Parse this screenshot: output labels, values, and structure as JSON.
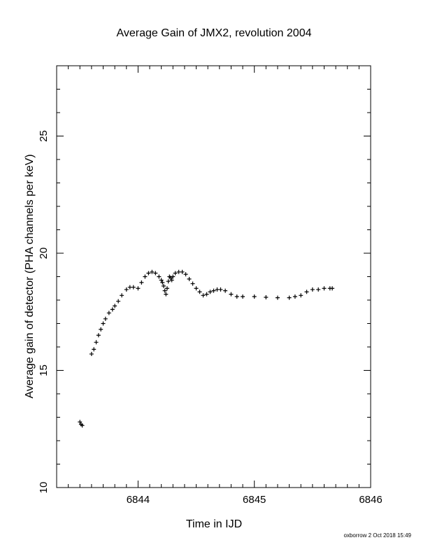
{
  "chart_data": {
    "type": "scatter",
    "title": "Average Gain of JMX2, revolution 2004",
    "xlabel": "Time in IJD",
    "ylabel": "Average gain of detector (PHA channels per keV)",
    "xlim": [
      6843.3,
      6846
    ],
    "ylim": [
      10,
      28
    ],
    "xticks": [
      6844,
      6845,
      6846
    ],
    "yticks": [
      10,
      15,
      20,
      25
    ],
    "grid": false,
    "marker": "+",
    "series": [
      {
        "x": [
          6843.5,
          6843.51,
          6843.52,
          6843.6,
          6843.62,
          6843.64,
          6843.66,
          6843.68,
          6843.7,
          6843.72,
          6843.75,
          6843.78,
          6843.8,
          6843.83,
          6843.86,
          6843.9,
          6843.93,
          6843.96,
          6844.0,
          6844.03,
          6844.06,
          6844.09,
          6844.12,
          6844.15,
          6844.18,
          6844.2,
          6844.21,
          6844.22,
          6844.23,
          6844.24,
          6844.25,
          6844.26,
          6844.27,
          6844.28,
          6844.29,
          6844.3,
          6844.32,
          6844.35,
          6844.38,
          6844.41,
          6844.44,
          6844.47,
          6844.5,
          6844.53,
          6844.56,
          6844.59,
          6844.62,
          6844.65,
          6844.68,
          6844.71,
          6844.75,
          6844.8,
          6844.85,
          6844.9,
          6845.0,
          6845.1,
          6845.2,
          6845.3,
          6845.35,
          6845.4,
          6845.45,
          6845.5,
          6845.55,
          6845.6,
          6845.65,
          6845.67
        ],
        "y": [
          12.8,
          12.7,
          12.65,
          15.7,
          15.9,
          16.2,
          16.5,
          16.75,
          17.0,
          17.2,
          17.45,
          17.6,
          17.75,
          17.95,
          18.2,
          18.45,
          18.55,
          18.55,
          18.5,
          18.75,
          19.0,
          19.15,
          19.2,
          19.15,
          19.0,
          18.85,
          18.75,
          18.6,
          18.4,
          18.25,
          18.5,
          18.8,
          19.0,
          18.95,
          18.85,
          19.0,
          19.15,
          19.2,
          19.2,
          19.1,
          18.9,
          18.7,
          18.5,
          18.35,
          18.2,
          18.25,
          18.35,
          18.4,
          18.45,
          18.45,
          18.4,
          18.25,
          18.15,
          18.15,
          18.15,
          18.12,
          18.1,
          18.1,
          18.15,
          18.2,
          18.35,
          18.45,
          18.45,
          18.5,
          18.5,
          18.5
        ]
      }
    ]
  },
  "footer": "oxborrow  2 Oct 2018 15:49"
}
